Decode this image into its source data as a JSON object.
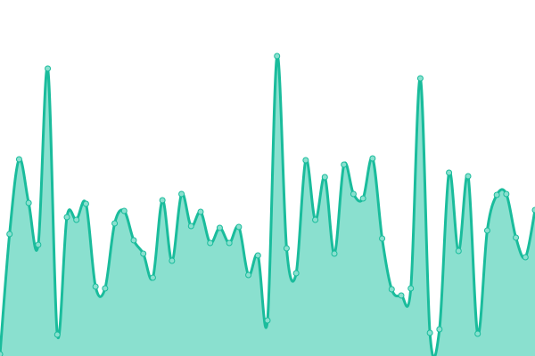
{
  "chart_data": {
    "type": "area",
    "title": "",
    "xlabel": "",
    "ylabel": "",
    "axes_visible": false,
    "grid": false,
    "legend": "none",
    "ylim": [
      0,
      400
    ],
    "smooth": true,
    "markers": true,
    "colors": {
      "line": "#1abc9c",
      "fill": "#8ae0cf",
      "marker_fill": "#8ae0cf"
    },
    "values": [
      2,
      137,
      221,
      172,
      125,
      323,
      24,
      156,
      153,
      171,
      78,
      76,
      149,
      163,
      130,
      115,
      88,
      175,
      107,
      182,
      146,
      162,
      127,
      144,
      127,
      145,
      91,
      113,
      40,
      337,
      121,
      93,
      220,
      153,
      201,
      115,
      215,
      182,
      177,
      222,
      132,
      75,
      68,
      76,
      312,
      26,
      30,
      206,
      118,
      202,
      25,
      141,
      181,
      182,
      133,
      111,
      164
    ]
  }
}
